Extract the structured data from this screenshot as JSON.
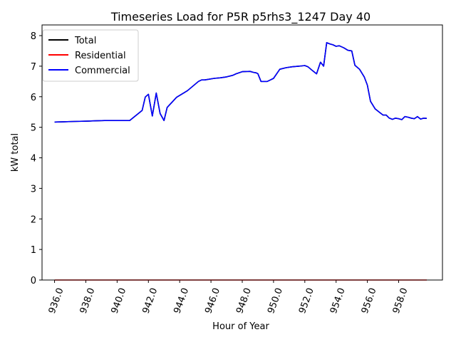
{
  "chart_data": {
    "type": "line",
    "title": "Timeseries Load for P5R p5rhs3_1247  Day 40",
    "xlabel": "Hour of Year",
    "ylabel": "kW total",
    "xlim": [
      935.2,
      960.8
    ],
    "ylim": [
      0,
      8.35
    ],
    "xticks": [
      936,
      938,
      940,
      942,
      944,
      946,
      948,
      950,
      952,
      954,
      956,
      958
    ],
    "xtick_labels": [
      "936.0",
      "938.0",
      "940.0",
      "942.0",
      "944.0",
      "946.0",
      "948.0",
      "950.0",
      "952.0",
      "954.0",
      "956.0",
      "958.0"
    ],
    "yticks": [
      0,
      1,
      2,
      3,
      4,
      5,
      6,
      7,
      8
    ],
    "ytick_labels": [
      "0",
      "1",
      "2",
      "3",
      "4",
      "5",
      "6",
      "7",
      "8"
    ],
    "legend_position": "top-left",
    "series": [
      {
        "name": "Total",
        "color": "#000000",
        "x": [
          936.0,
          936.6,
          937.2,
          938.0,
          938.6,
          939.2,
          940.0,
          940.8,
          941.6,
          941.8,
          942.0,
          942.25,
          942.5,
          942.75,
          943.0,
          943.2,
          943.8,
          944.5,
          945.2,
          945.4,
          945.6,
          946.2,
          946.6,
          947.0,
          947.4,
          947.6,
          948.0,
          948.5,
          948.7,
          948.9,
          949.0,
          949.2,
          949.6,
          949.8,
          950.0,
          950.4,
          950.8,
          951.2,
          951.6,
          951.8,
          952.0,
          952.2,
          952.5,
          952.75,
          953.0,
          953.2,
          953.4,
          953.6,
          953.8,
          954.0,
          954.2,
          954.5,
          954.75,
          955.0,
          955.2,
          955.5,
          955.8,
          956.0,
          956.2,
          956.5,
          956.75,
          957.0,
          957.2,
          957.4,
          957.6,
          957.8,
          958.0,
          958.2,
          958.4,
          958.6,
          958.8,
          959.0,
          959.2,
          959.4,
          959.6,
          959.8
        ],
        "y": [
          5.17,
          5.18,
          5.19,
          5.2,
          5.21,
          5.22,
          5.22,
          5.22,
          5.55,
          5.99,
          6.08,
          5.37,
          6.12,
          5.45,
          5.22,
          5.65,
          5.98,
          6.2,
          6.5,
          6.55,
          6.55,
          6.6,
          6.62,
          6.65,
          6.7,
          6.75,
          6.82,
          6.83,
          6.8,
          6.78,
          6.75,
          6.5,
          6.5,
          6.55,
          6.6,
          6.9,
          6.95,
          6.98,
          7.0,
          7.01,
          7.02,
          6.98,
          6.85,
          6.75,
          7.13,
          7.0,
          7.77,
          7.73,
          7.7,
          7.65,
          7.67,
          7.6,
          7.52,
          7.5,
          7.03,
          6.9,
          6.65,
          6.38,
          5.85,
          5.6,
          5.5,
          5.4,
          5.4,
          5.3,
          5.26,
          5.3,
          5.28,
          5.25,
          5.35,
          5.33,
          5.3,
          5.28,
          5.35,
          5.27,
          5.3,
          5.29
        ]
      },
      {
        "name": "Residential",
        "color": "#ff0000",
        "x": [
          936.0,
          959.8
        ],
        "y": [
          0,
          0
        ]
      },
      {
        "name": "Commercial",
        "color": "#0000ff",
        "x": [
          936.0,
          936.6,
          937.2,
          938.0,
          938.6,
          939.2,
          940.0,
          940.8,
          941.6,
          941.8,
          942.0,
          942.25,
          942.5,
          942.75,
          943.0,
          943.2,
          943.8,
          944.5,
          945.2,
          945.4,
          945.6,
          946.2,
          946.6,
          947.0,
          947.4,
          947.6,
          948.0,
          948.5,
          948.7,
          948.9,
          949.0,
          949.2,
          949.6,
          949.8,
          950.0,
          950.4,
          950.8,
          951.2,
          951.6,
          951.8,
          952.0,
          952.2,
          952.5,
          952.75,
          953.0,
          953.2,
          953.4,
          953.6,
          953.8,
          954.0,
          954.2,
          954.5,
          954.75,
          955.0,
          955.2,
          955.5,
          955.8,
          956.0,
          956.2,
          956.5,
          956.75,
          957.0,
          957.2,
          957.4,
          957.6,
          957.8,
          958.0,
          958.2,
          958.4,
          958.6,
          958.8,
          959.0,
          959.2,
          959.4,
          959.6,
          959.8
        ],
        "y": [
          5.17,
          5.18,
          5.19,
          5.2,
          5.21,
          5.22,
          5.22,
          5.22,
          5.55,
          5.99,
          6.08,
          5.37,
          6.12,
          5.45,
          5.22,
          5.65,
          5.98,
          6.2,
          6.5,
          6.55,
          6.55,
          6.6,
          6.62,
          6.65,
          6.7,
          6.75,
          6.82,
          6.83,
          6.8,
          6.78,
          6.75,
          6.5,
          6.5,
          6.55,
          6.6,
          6.9,
          6.95,
          6.98,
          7.0,
          7.01,
          7.02,
          6.98,
          6.85,
          6.75,
          7.13,
          7.0,
          7.77,
          7.73,
          7.7,
          7.65,
          7.67,
          7.6,
          7.52,
          7.5,
          7.03,
          6.9,
          6.65,
          6.38,
          5.85,
          5.6,
          5.5,
          5.4,
          5.4,
          5.3,
          5.26,
          5.3,
          5.28,
          5.25,
          5.35,
          5.33,
          5.3,
          5.28,
          5.35,
          5.27,
          5.3,
          5.29
        ]
      }
    ]
  }
}
